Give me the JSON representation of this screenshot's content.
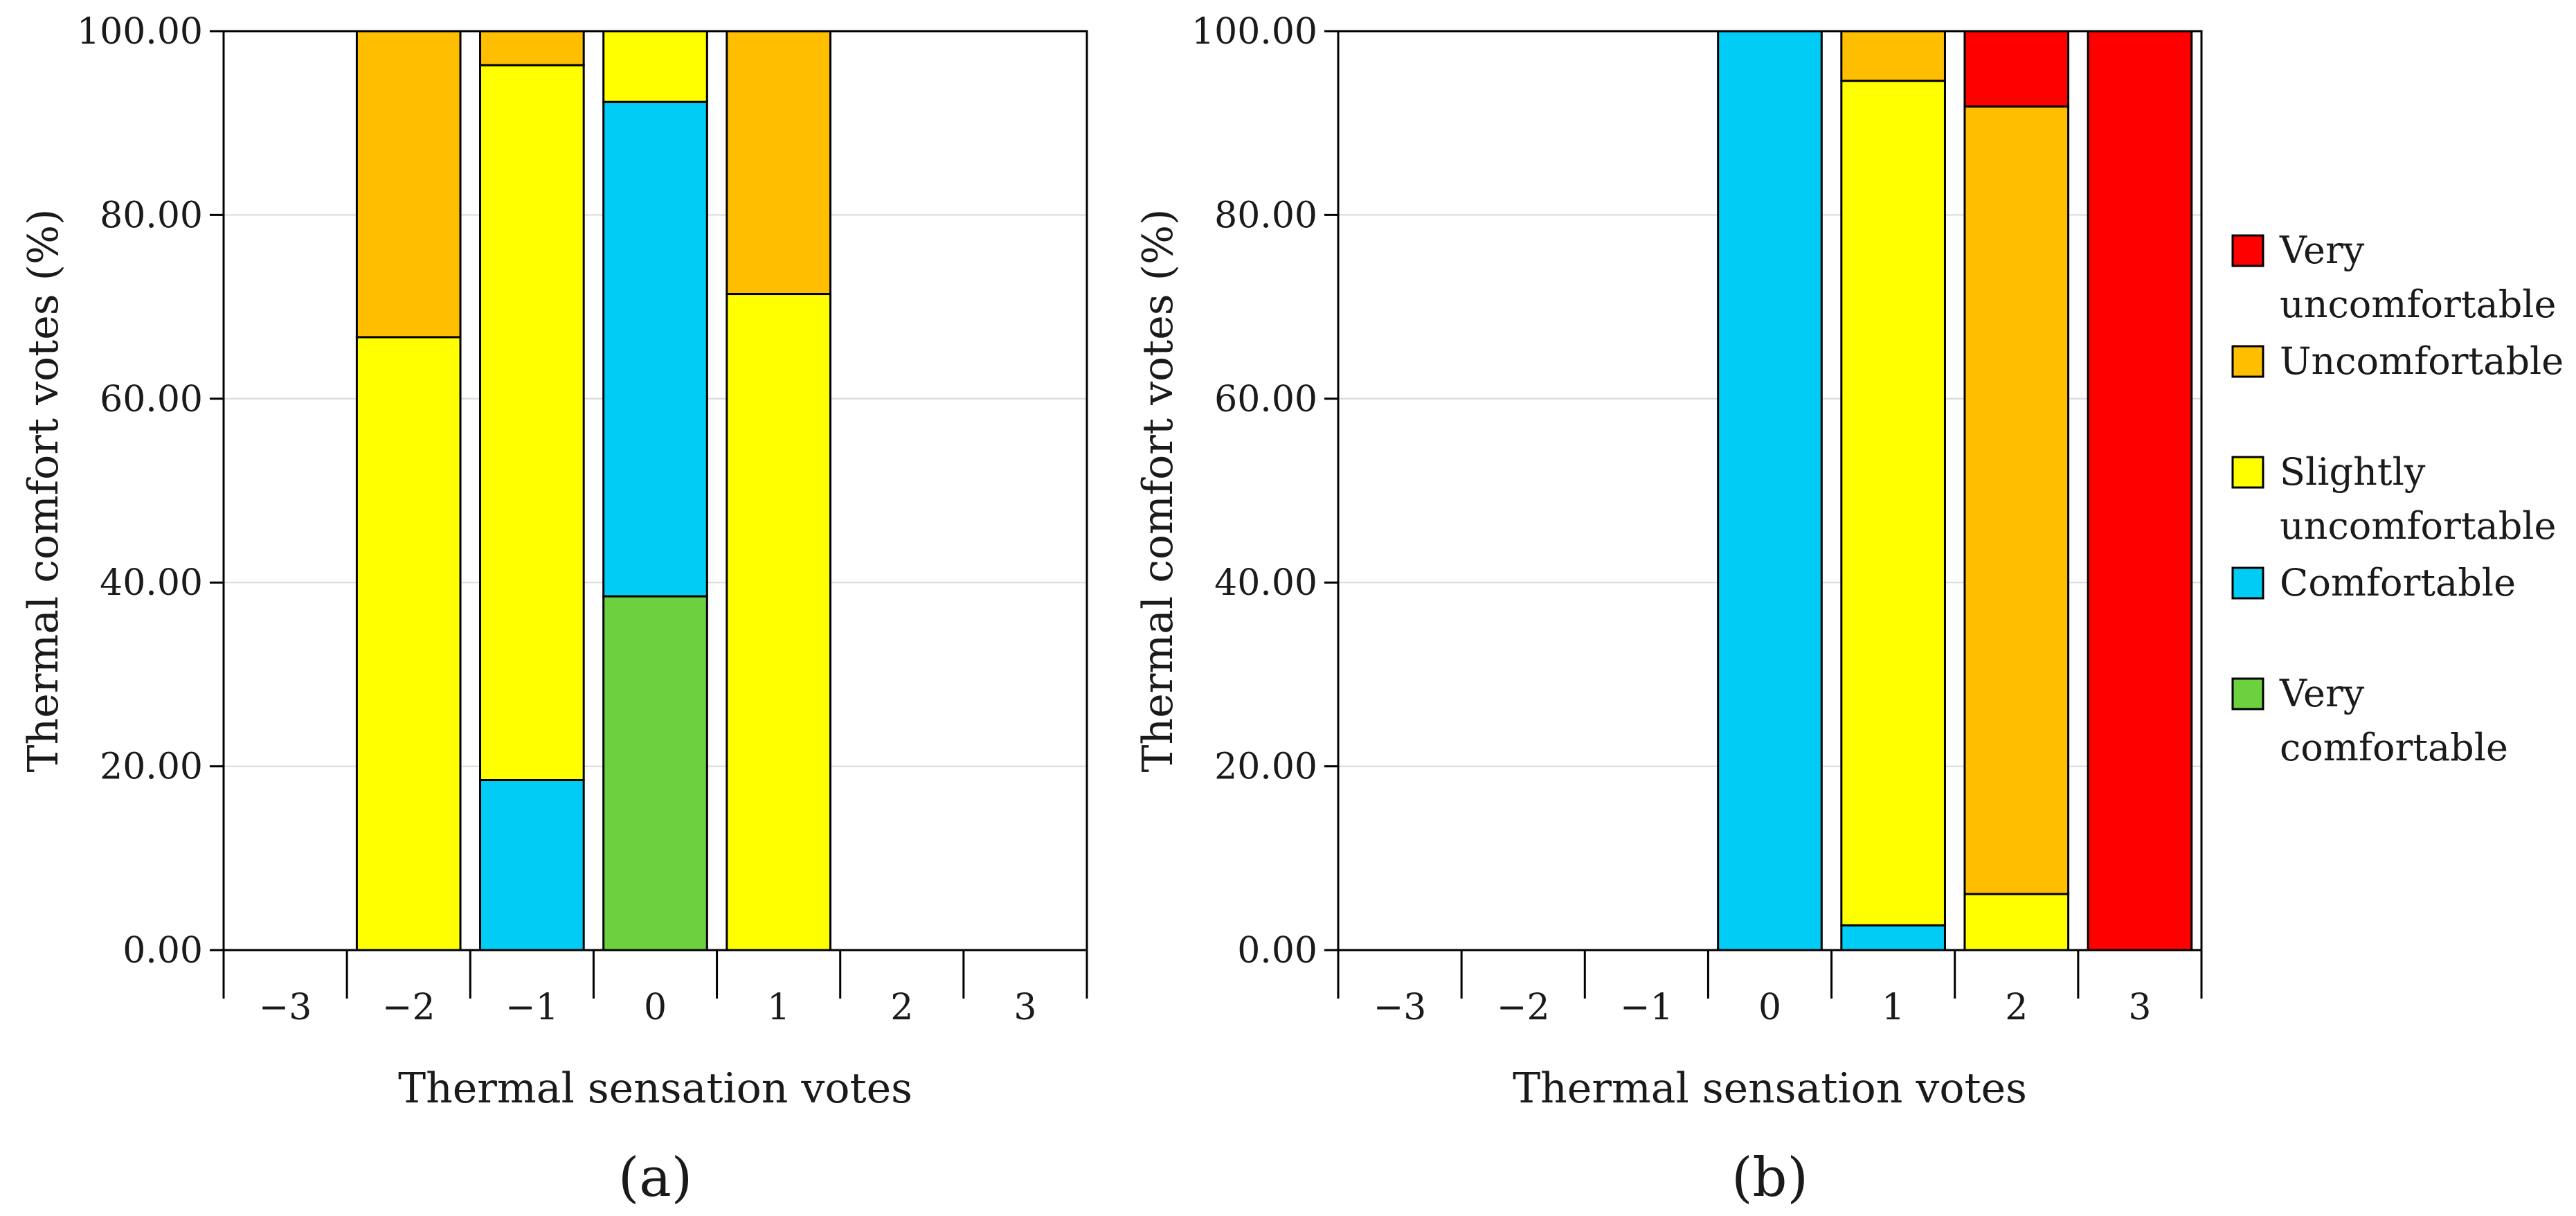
{
  "chart_data": [
    {
      "type": "bar",
      "stacked": true,
      "panel_label": "(a)",
      "xlabel": "Thermal sensation votes",
      "ylabel": "Thermal comfort votes (%)",
      "ylim": [
        0,
        100
      ],
      "y_ticks": [
        "0.00",
        "20.00",
        "40.00",
        "60.00",
        "80.00",
        "100.00"
      ],
      "categories": [
        "−3",
        "−2",
        "−1",
        "0",
        "1",
        "2",
        "3"
      ],
      "grid": "horizontal",
      "series": [
        {
          "name": "Very comfortable",
          "color": "#6dd13f",
          "values": [
            0,
            0,
            0,
            38.5,
            0,
            0,
            0
          ]
        },
        {
          "name": "Comfortable",
          "color": "#00ccf5",
          "values": [
            0,
            0,
            18.5,
            53.8,
            0,
            0,
            0
          ]
        },
        {
          "name": "Slightly uncomfortable",
          "color": "#ffff00",
          "values": [
            0,
            66.7,
            77.8,
            7.7,
            71.4,
            0,
            0
          ]
        },
        {
          "name": "Uncomfortable",
          "color": "#ffbf00",
          "values": [
            0,
            33.3,
            3.7,
            0,
            28.6,
            0,
            0
          ]
        },
        {
          "name": "Very uncomfortable",
          "color": "#ff0000",
          "values": [
            0,
            0,
            0,
            0,
            0,
            0,
            0
          ]
        }
      ]
    },
    {
      "type": "bar",
      "stacked": true,
      "panel_label": "(b)",
      "xlabel": "Thermal sensation votes",
      "ylabel": "Thermal comfort votes (%)",
      "ylim": [
        0,
        100
      ],
      "y_ticks": [
        "0.00",
        "20.00",
        "40.00",
        "60.00",
        "80.00",
        "100.00"
      ],
      "categories": [
        "−3",
        "−2",
        "−1",
        "0",
        "1",
        "2",
        "3"
      ],
      "grid": "horizontal",
      "series": [
        {
          "name": "Very comfortable",
          "color": "#6dd13f",
          "values": [
            0,
            0,
            0,
            0,
            0,
            0,
            0
          ]
        },
        {
          "name": "Comfortable",
          "color": "#00ccf5",
          "values": [
            0,
            0,
            0,
            100,
            2.7,
            0,
            0
          ]
        },
        {
          "name": "Slightly uncomfortable",
          "color": "#ffff00",
          "values": [
            0,
            0,
            0,
            0,
            91.9,
            6.1,
            0
          ]
        },
        {
          "name": "Uncomfortable",
          "color": "#ffbf00",
          "values": [
            0,
            0,
            0,
            0,
            5.4,
            85.7,
            0
          ]
        },
        {
          "name": "Very uncomfortable",
          "color": "#ff0000",
          "values": [
            0,
            0,
            0,
            0,
            0,
            8.2,
            100
          ]
        }
      ]
    }
  ],
  "legend": {
    "placement": "right",
    "items": [
      {
        "lines": [
          "Very",
          "uncomfortable"
        ],
        "color": "#ff0000"
      },
      {
        "lines": [
          "Uncomfortable"
        ],
        "color": "#ffbf00"
      },
      {
        "lines": [
          "Slightly",
          "uncomfortable"
        ],
        "color": "#ffff00"
      },
      {
        "lines": [
          "Comfortable"
        ],
        "color": "#00ccf5"
      },
      {
        "lines": [
          "Very",
          "comfortable"
        ],
        "color": "#6dd13f"
      }
    ]
  }
}
